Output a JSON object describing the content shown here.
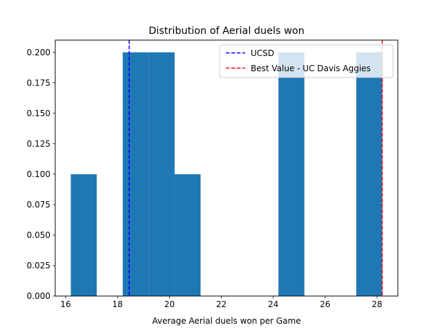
{
  "chart_data": {
    "type": "bar",
    "title": "Distribution of Aerial duels won",
    "xlabel": "Average Aerial duels won per Game",
    "ylabel": "",
    "xlim": [
      15.6,
      28.8
    ],
    "ylim": [
      0,
      0.21
    ],
    "x_ticks": [
      16,
      18,
      20,
      22,
      24,
      26,
      28
    ],
    "y_ticks": [
      0.0,
      0.025,
      0.05,
      0.075,
      0.1,
      0.125,
      0.15,
      0.175,
      0.2
    ],
    "x_tick_labels": [
      "16",
      "18",
      "20",
      "22",
      "24",
      "26",
      "28"
    ],
    "y_tick_labels": [
      "0.000",
      "0.025",
      "0.050",
      "0.075",
      "0.100",
      "0.125",
      "0.150",
      "0.175",
      "0.200"
    ],
    "bins": [
      {
        "x0": 16.2,
        "x1": 17.2,
        "value": 0.1
      },
      {
        "x0": 17.2,
        "x1": 18.2,
        "value": 0.0
      },
      {
        "x0": 18.2,
        "x1": 19.2,
        "value": 0.2
      },
      {
        "x0": 19.2,
        "x1": 20.2,
        "value": 0.2
      },
      {
        "x0": 20.2,
        "x1": 21.2,
        "value": 0.1
      },
      {
        "x0": 21.2,
        "x1": 22.2,
        "value": 0.0
      },
      {
        "x0": 22.2,
        "x1": 23.2,
        "value": 0.0
      },
      {
        "x0": 23.2,
        "x1": 24.2,
        "value": 0.0
      },
      {
        "x0": 24.2,
        "x1": 25.2,
        "value": 0.2
      },
      {
        "x0": 25.2,
        "x1": 26.2,
        "value": 0.0
      },
      {
        "x0": 26.2,
        "x1": 27.2,
        "value": 0.0
      },
      {
        "x0": 27.2,
        "x1": 28.2,
        "value": 0.2
      }
    ],
    "bar_color": "#1f77b4",
    "reference_lines": [
      {
        "name": "UCSD",
        "x": 18.45,
        "color": "#0000ff",
        "style": "dashed"
      },
      {
        "name": "Best Value - UC Davis Aggies",
        "x": 28.2,
        "color": "#ff0000",
        "style": "dashed"
      }
    ],
    "legend_position": "top-right",
    "grid": false
  }
}
